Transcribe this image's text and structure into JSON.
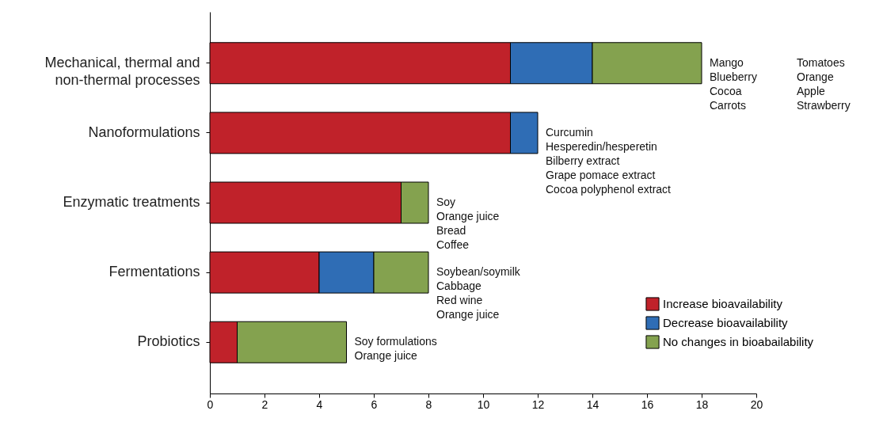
{
  "chart_data": {
    "type": "bar",
    "orientation": "horizontal",
    "stacked": true,
    "categories": [
      "Mechanical, thermal and non-thermal processes",
      "Nanoformulations",
      "Enzymatic treatments",
      "Fermentations",
      "Probiotics"
    ],
    "series": [
      {
        "name": "Increase bioavailability",
        "color": "#c0222a",
        "values": [
          11,
          11,
          7,
          4,
          1
        ]
      },
      {
        "name": "Decrease bioavailability",
        "color": "#2f6db5",
        "values": [
          3,
          1,
          null,
          2,
          null
        ]
      },
      {
        "name": "No changes in bioabailability",
        "color": "#84a24f",
        "values": [
          4,
          null,
          1,
          2,
          4
        ]
      }
    ],
    "xlim": [
      0,
      20
    ],
    "xticks": [
      0,
      2,
      4,
      6,
      8,
      10,
      12,
      14,
      16,
      18,
      20
    ],
    "grid": false,
    "legend": "bottom right",
    "annotations": [
      {
        "text": "Mango\nBlueberry\nCocoa\nCarrots",
        "x": 18,
        "y": "Mechanical, thermal and non-thermal processes"
      },
      "Tomatoes\nOrange\nApple\nStrawberry",
      {
        "text": "Curcumin\nHesperedin/hesperetin\nBilberry extract\nGrape pomace extract\nCocoa polyphenol extract",
        "x": 12,
        "y": "Nanoformulations"
      },
      {
        "text": "Soy\nOrange juice\nBread\nCoffee",
        "x": 8,
        "y": "Enzymatic treatments"
      },
      {
        "text": "Soybean/soymilk\nCabbage\nRed wine\nOrange juice",
        "x": 8,
        "y": "Fermentations"
      },
      {
        "text": "Soy formulations\nOrange juice",
        "x": 5,
        "y": "Probiotics"
      }
    ]
  }
}
